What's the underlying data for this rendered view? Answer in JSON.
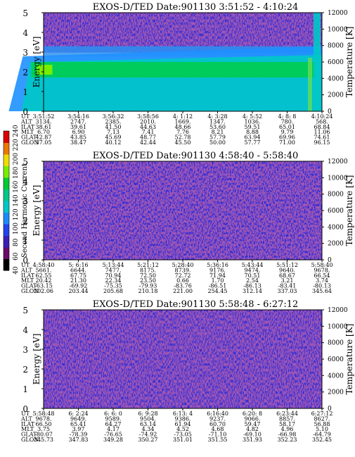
{
  "colors": {
    "background": "#2b2bd8",
    "noise": "#7a1f6b",
    "colorbar": [
      "#000000",
      "#6a0a6a",
      "#3b1fb8",
      "#2244ee",
      "#1a8cff",
      "#00c8c8",
      "#00c888",
      "#00cc33",
      "#77ee00",
      "#eedd00",
      "#ee7700",
      "#dd0000"
    ]
  },
  "colorbar": {
    "label": "Second Harmonic Current",
    "ticks": [
      "40",
      "60",
      "80",
      "100",
      "120",
      "140",
      "160",
      "180",
      "200",
      "220",
      "240"
    ]
  },
  "row_labels": [
    "UT",
    "ALT",
    "ILAT",
    "MLT",
    "GLAT",
    "GLON"
  ],
  "chart_data": [
    {
      "type": "heatmap",
      "title": "EXOS-D/TED  Date:901130  3:51:52 - 4:10:24",
      "ylabel": "Energy [eV]",
      "y2label": "Temperature [K]",
      "ylim": [
        0,
        5
      ],
      "y2lim": [
        0,
        12000
      ],
      "yticks": [
        "0",
        "1",
        "2",
        "3",
        "4",
        "5"
      ],
      "y2ticks": [
        "0",
        "2000",
        "4000",
        "6000",
        "8000",
        "10000",
        "12000"
      ],
      "features": [
        {
          "name": "band",
          "energy_range": [
            2.0,
            3.3
          ],
          "level": "medium"
        },
        {
          "name": "enhancement",
          "time_range": [
            "4:5:52",
            "4:10:24"
          ],
          "energy_range": [
            0,
            3.0
          ],
          "level": "high"
        }
      ],
      "table": [
        [
          "3:51:52",
          "3:54:16",
          "3:56:32",
          "3:58:56",
          "4: 1:12",
          "4: 3:28",
          "4: 5:52",
          "4: 8: 8",
          "4:10:24"
        ],
        [
          "3134.",
          "2747.",
          "2385.",
          "2010.",
          "1669.",
          "1347.",
          "1036.",
          "780.",
          "568."
        ],
        [
          "38.61",
          "39.61",
          "41.50",
          "44.63",
          "48.66",
          "53.60",
          "59.51",
          "65.01",
          "68.84"
        ],
        [
          "6.70",
          "6.90",
          "7.13",
          "7.41",
          "7.76",
          "8.21",
          "8.88",
          "9.79",
          "11.06"
        ],
        [
          "42.87",
          "43.85",
          "45.69",
          "48.77",
          "52.78",
          "57.79",
          "63.94",
          "69.96",
          "74.61"
        ],
        [
          "37.05",
          "38.47",
          "40.12",
          "42.44",
          "45.50",
          "50.00",
          "57.77",
          "71.00",
          "96.15"
        ]
      ]
    },
    {
      "type": "heatmap",
      "title": "EXOS-D/TED  Date:901130  4:58:40 - 5:58:40",
      "ylabel": "Energy [eV]",
      "y2label": "Temperature [K]",
      "ylim": [
        0,
        5
      ],
      "y2lim": [
        0,
        12000
      ],
      "yticks": [
        "0",
        "1",
        "2",
        "3",
        "4",
        "5"
      ],
      "y2ticks": [
        "0",
        "2000",
        "4000",
        "6000",
        "8000",
        "10000",
        "12000"
      ],
      "features": [],
      "table": [
        [
          "4:58:40",
          "5: 6:16",
          "5:13:44",
          "5:21:12",
          "5:28:40",
          "5:36:16",
          "5:43:44",
          "5:51:12",
          "5:58:40"
        ],
        [
          "5661.",
          "6644.",
          "7477.",
          "8175.",
          "8739.",
          "9176.",
          "9474.",
          "9640.",
          "9678."
        ],
        [
          "62.55",
          "67.75",
          "70.94",
          "72.50",
          "72.72",
          "71.94",
          "70.51",
          "68.67",
          "66.54"
        ],
        [
          "20.42",
          "21.30",
          "22.34",
          "23.50",
          "0.66",
          "1.70",
          "2.54",
          "3.21",
          "3.74"
        ],
        [
          "-63.15",
          "-69.92",
          "-75.35",
          "-79.93",
          "-83.76",
          "-86.51",
          "-86.13",
          "-83.41",
          "-80.13"
        ],
        [
          "202.06",
          "203.44",
          "205.68",
          "210.18",
          "221.00",
          "254.45",
          "312.14",
          "337.03",
          "345.64"
        ]
      ]
    },
    {
      "type": "heatmap",
      "title": "EXOS-D/TED  Date:901130  5:58:48 - 6:27:12",
      "ylabel": "Energy [eV]",
      "y2label": "Temperature [K]",
      "ylim": [
        0,
        5
      ],
      "y2lim": [
        0,
        12000
      ],
      "yticks": [
        "0",
        "1",
        "2",
        "3",
        "4",
        "5"
      ],
      "y2ticks": [
        "0",
        "2000",
        "4000",
        "6000",
        "8000",
        "10000",
        "12000"
      ],
      "features": [],
      "table": [
        [
          "5:58:48",
          "6: 2:24",
          "6: 6: 0",
          "6: 9:28",
          "6:13: 4",
          "6:16:40",
          "6:20: 8",
          "6:23:44",
          "6:27:12"
        ],
        [
          "9678.",
          "9649.",
          "9589.",
          "9504.",
          "9386.",
          "9237.",
          "9066.",
          "8857.",
          "8627."
        ],
        [
          "66.50",
          "65.41",
          "64.27",
          "63.14",
          "61.94",
          "60.70",
          "59.47",
          "58.17",
          "56.88"
        ],
        [
          "3.75",
          "3.97",
          "4.17",
          "4.34",
          "4.52",
          "4.68",
          "4.82",
          "4.96",
          "5.10"
        ],
        [
          "-80.07",
          "-78.39",
          "-76.65",
          "-74.92",
          "-73.05",
          "-71.10",
          "-69.10",
          "-66.98",
          "-64.79"
        ],
        [
          "345.73",
          "347.83",
          "349.28",
          "350.27",
          "351.01",
          "351.55",
          "351.93",
          "352.23",
          "352.45"
        ]
      ]
    }
  ]
}
